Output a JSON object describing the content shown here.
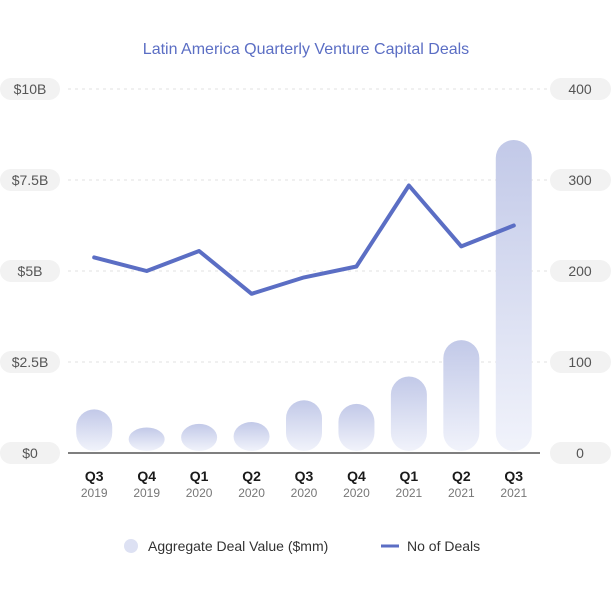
{
  "chart_data": {
    "type": "bar",
    "title": "Latin America Quarterly Venture Capital Deals",
    "categories": [
      {
        "quarter": "Q3",
        "year": "2019"
      },
      {
        "quarter": "Q4",
        "year": "2019"
      },
      {
        "quarter": "Q1",
        "year": "2020"
      },
      {
        "quarter": "Q2",
        "year": "2020"
      },
      {
        "quarter": "Q3",
        "year": "2020"
      },
      {
        "quarter": "Q4",
        "year": "2020"
      },
      {
        "quarter": "Q1",
        "year": "2021"
      },
      {
        "quarter": "Q2",
        "year": "2021"
      },
      {
        "quarter": "Q3",
        "year": "2021"
      }
    ],
    "series": [
      {
        "name": "Aggregate Deal Value ($mm)",
        "type": "bar",
        "axis": "left",
        "values": [
          1200,
          700,
          800,
          850,
          1450,
          1350,
          2100,
          3100,
          8600
        ]
      },
      {
        "name": "No of Deals",
        "type": "line",
        "axis": "right",
        "values": [
          215,
          200,
          222,
          175,
          193,
          205,
          294,
          227,
          250
        ]
      }
    ],
    "y_left": {
      "ticks": [
        "$0",
        "$2.5B",
        "$5B",
        "$7.5B",
        "$10B"
      ],
      "tick_values": [
        0,
        2500,
        5000,
        7500,
        10000
      ],
      "ylim": [
        0,
        10000
      ]
    },
    "y_right": {
      "ticks": [
        "0",
        "100",
        "200",
        "300",
        "400"
      ],
      "tick_values": [
        0,
        100,
        200,
        300,
        400
      ],
      "ylim": [
        0,
        400
      ]
    },
    "grid": true,
    "legend_position": "bottom",
    "colors": {
      "bar_top": "#c2c9e8",
      "bar_bottom": "#f1f3fb",
      "line": "#5b6ec4",
      "title": "#5b6ec4",
      "tick_pill": "#f2f2f2",
      "grid": "#e2e2e2",
      "axis": "#333333"
    }
  }
}
